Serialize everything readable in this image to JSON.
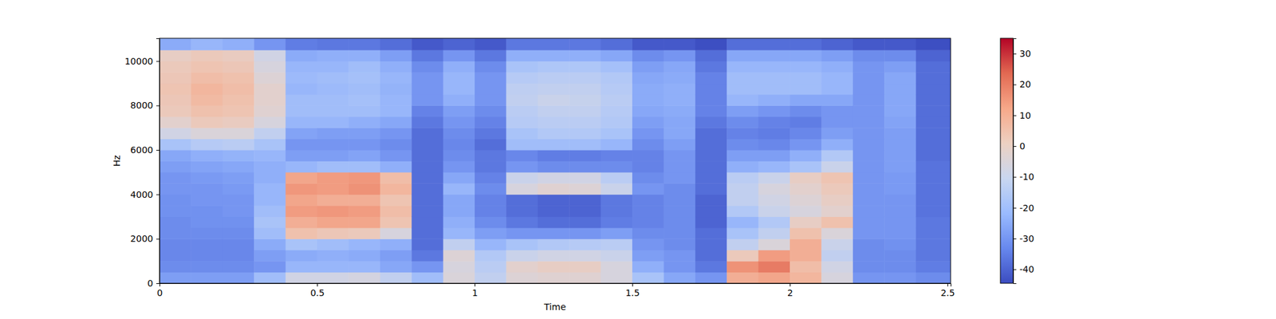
{
  "chart_data": {
    "type": "spectrogram",
    "x_label": "Time",
    "y_label": "Hz",
    "xlim": [
      0,
      2.51
    ],
    "ylim": [
      0,
      11025
    ],
    "xticks": [
      0,
      0.5,
      1,
      1.5,
      2,
      2.5
    ],
    "yticks": [
      0,
      2000,
      4000,
      6000,
      8000,
      10000
    ],
    "time_bins": [
      0,
      0.1,
      0.2,
      0.3,
      0.4,
      0.5,
      0.6,
      0.7,
      0.8,
      0.9,
      1.0,
      1.1,
      1.2,
      1.3,
      1.4,
      1.5,
      1.6,
      1.7,
      1.8,
      1.9,
      2.0,
      2.1,
      2.2,
      2.3,
      2.4,
      2.51
    ],
    "freq_bins": [
      0,
      500,
      1000,
      1500,
      2000,
      2500,
      3000,
      3500,
      4000,
      4500,
      5000,
      5500,
      6000,
      6500,
      7000,
      7500,
      8000,
      8500,
      9000,
      9500,
      10000,
      10500,
      11025
    ],
    "z": [
      [
        -28,
        -32,
        -33,
        -33,
        -32,
        -32,
        -31,
        -31,
        -30,
        -30,
        -28,
        -26,
        -18,
        -8,
        -2,
        2,
        3,
        4,
        3,
        2,
        0,
        -25
      ],
      [
        -28,
        -32,
        -33,
        -33,
        -32,
        -31,
        -31,
        -30,
        -30,
        -29,
        -27,
        -24,
        -15,
        -5,
        2,
        5,
        7,
        8,
        6,
        4,
        2,
        -22
      ],
      [
        -28,
        -32,
        -33,
        -33,
        -32,
        -31,
        -30,
        -30,
        -29,
        -28,
        -26,
        -23,
        -14,
        -5,
        1,
        4,
        5,
        6,
        5,
        3,
        1,
        -24
      ],
      [
        -20,
        -30,
        -28,
        -25,
        -20,
        -18,
        -20,
        -22,
        -22,
        -24,
        -24,
        -22,
        -18,
        -12,
        -6,
        -3,
        -2,
        -2,
        -4,
        -6,
        -8,
        -30
      ],
      [
        -8,
        -22,
        -25,
        -18,
        5,
        10,
        14,
        12,
        15,
        12,
        -22,
        -28,
        -30,
        -27,
        -22,
        -20,
        -20,
        -22,
        -21,
        -22,
        -25,
        -35
      ],
      [
        -8,
        -22,
        -24,
        -20,
        3,
        12,
        15,
        10,
        14,
        14,
        -20,
        -28,
        -30,
        -28,
        -22,
        -20,
        -20,
        -21,
        -20,
        -22,
        -24,
        -36
      ],
      [
        -7,
        -22,
        -25,
        -22,
        2,
        12,
        14,
        10,
        16,
        15,
        -20,
        -27,
        -30,
        -28,
        -24,
        -20,
        -19,
        -20,
        -19,
        -20,
        -24,
        -36
      ],
      [
        -12,
        -26,
        -28,
        -24,
        -6,
        4,
        6,
        4,
        8,
        6,
        -24,
        -30,
        -32,
        -30,
        -26,
        -22,
        -22,
        -23,
        -22,
        -24,
        -28,
        -38
      ],
      [
        -20,
        -30,
        -36,
        -38,
        -38,
        -38,
        -38,
        -38,
        -38,
        -38,
        -38,
        -38,
        -38,
        -38,
        -36,
        -34,
        -30,
        -30,
        -30,
        -32,
        -36,
        -42
      ],
      [
        -5,
        -6,
        -4,
        -12,
        -22,
        -24,
        -26,
        -26,
        -22,
        -26,
        -30,
        -32,
        -33,
        -32,
        -30,
        -28,
        -24,
        -22,
        -22,
        -24,
        -30,
        -40
      ],
      [
        -12,
        -14,
        -16,
        -22,
        -28,
        -32,
        -34,
        -34,
        -32,
        -34,
        -36,
        -36,
        -38,
        -36,
        -34,
        -32,
        -30,
        -30,
        -30,
        -32,
        -36,
        -42
      ],
      [
        -4,
        -2,
        -10,
        -18,
        -30,
        -36,
        -38,
        -38,
        -6,
        -10,
        -30,
        -33,
        -20,
        -18,
        -15,
        -14,
        -12,
        -13,
        -15,
        -18,
        -24,
        -36
      ],
      [
        -3,
        0,
        -8,
        -16,
        -30,
        -38,
        -40,
        -40,
        -3,
        -8,
        -32,
        -35,
        -20,
        -16,
        -14,
        -12,
        -10,
        -12,
        -14,
        -17,
        -24,
        -36
      ],
      [
        -3,
        0,
        -8,
        -15,
        -30,
        -38,
        -40,
        -40,
        -4,
        -8,
        -32,
        -35,
        -20,
        -16,
        -14,
        -12,
        -11,
        -12,
        -14,
        -17,
        -24,
        -36
      ],
      [
        -6,
        -6,
        -10,
        -14,
        -28,
        -35,
        -36,
        -36,
        -10,
        -14,
        -32,
        -34,
        -22,
        -18,
        -16,
        -15,
        -14,
        -15,
        -16,
        -19,
        -26,
        -38
      ],
      [
        -18,
        -24,
        -28,
        -30,
        -32,
        -34,
        -34,
        -34,
        -30,
        -32,
        -34,
        -34,
        -32,
        -30,
        -28,
        -26,
        -25,
        -25,
        -26,
        -28,
        -32,
        -42
      ],
      [
        -26,
        -30,
        -30,
        -32,
        -32,
        -32,
        -32,
        -32,
        -32,
        -30,
        -30,
        -30,
        -28,
        -26,
        -26,
        -25,
        -24,
        -24,
        -25,
        -26,
        -30,
        -42
      ],
      [
        -30,
        -36,
        -38,
        -38,
        -38,
        -40,
        -40,
        -40,
        -38,
        -38,
        -38,
        -38,
        -38,
        -38,
        -36,
        -34,
        -34,
        -34,
        -34,
        -36,
        -38,
        -44
      ],
      [
        10,
        16,
        2,
        -12,
        -18,
        -22,
        -16,
        -12,
        -12,
        -14,
        -24,
        -28,
        -32,
        -34,
        -32,
        -28,
        -22,
        -20,
        -20,
        -22,
        -26,
        -38
      ],
      [
        12,
        20,
        14,
        -5,
        -12,
        -16,
        -10,
        -8,
        -6,
        -10,
        -22,
        -28,
        -33,
        -35,
        -34,
        -30,
        -24,
        -20,
        -20,
        -22,
        -26,
        -38
      ],
      [
        8,
        6,
        10,
        10,
        5,
        0,
        -6,
        -4,
        -2,
        0,
        -18,
        -24,
        -30,
        -33,
        -35,
        -32,
        -26,
        -20,
        -20,
        -22,
        -26,
        -38
      ],
      [
        -6,
        -8,
        -12,
        -10,
        -5,
        5,
        -2,
        0,
        2,
        4,
        -10,
        -16,
        -24,
        -28,
        -30,
        -30,
        -26,
        -22,
        -22,
        -24,
        -28,
        -40
      ],
      [
        -30,
        -32,
        -32,
        -32,
        -30,
        -30,
        -30,
        -30,
        -30,
        -30,
        -30,
        -30,
        -30,
        -30,
        -30,
        -30,
        -30,
        -30,
        -30,
        -30,
        -32,
        -42
      ],
      [
        -30,
        -32,
        -32,
        -31,
        -30,
        -30,
        -30,
        -30,
        -29,
        -29,
        -28,
        -28,
        -28,
        -28,
        -27,
        -26,
        -26,
        -26,
        -26,
        -28,
        -32,
        -42
      ],
      [
        -32,
        -35,
        -36,
        -36,
        -36,
        -36,
        -37,
        -37,
        -37,
        -37,
        -37,
        -38,
        -38,
        -38,
        -38,
        -38,
        -38,
        -38,
        -38,
        -38,
        -40,
        -44
      ]
    ],
    "colorbar": {
      "range": [
        -44.5,
        35
      ],
      "ticks": [
        -40,
        -30,
        -20,
        -10,
        0,
        10,
        20,
        30
      ]
    }
  }
}
